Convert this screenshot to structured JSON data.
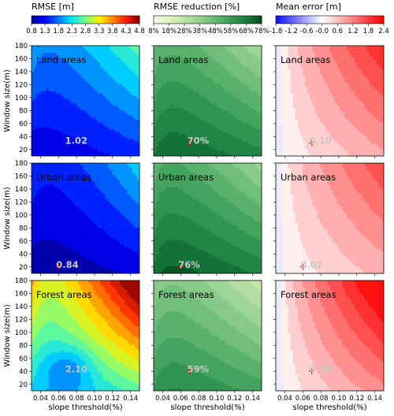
{
  "chart_data": {
    "type": "heatmap",
    "rows": [
      {
        "region": "Land areas"
      },
      {
        "region": "Urban areas"
      },
      {
        "region": "Forest areas"
      }
    ],
    "columns": [
      {
        "title": "RMSE [m]",
        "colormap": "jet",
        "colorbar_range": [
          0.8,
          4.8
        ],
        "colorbar_ticks": [
          "0.8",
          "1.3",
          "1.8",
          "2.3",
          "2.8",
          "3.3",
          "3.8",
          "4.3",
          "4.8"
        ],
        "annotations": [
          "1.02",
          "0.84",
          "2.10"
        ]
      },
      {
        "title": "RMSE reduction [%]",
        "colormap": "greens",
        "colorbar_range": [
          8,
          78
        ],
        "colorbar_ticks": [
          "8%",
          "18%",
          "28%",
          "38%",
          "48%",
          "58%",
          "68%",
          "78%"
        ],
        "annotations": [
          "70%",
          "76%",
          "59%"
        ]
      },
      {
        "title": "Mean error [m]",
        "colormap": "bwr",
        "colorbar_range": [
          -1.8,
          2.4
        ],
        "colorbar_ticks": [
          "-1.8",
          "-1.2",
          "-0.6",
          "-0.0",
          "0.6",
          "1.2",
          "1.8",
          "2.4"
        ],
        "annotations": [
          "0.10",
          "0.07",
          "0.30"
        ]
      }
    ],
    "optimum_markers": [
      {
        "row": 0,
        "x": 0.07,
        "y": 30
      },
      {
        "row": 1,
        "x": 0.06,
        "y": 20
      },
      {
        "row": 2,
        "x": 0.07,
        "y": 40
      }
    ],
    "xlim": [
      0.03,
      0.15
    ],
    "ylim": [
      10,
      180
    ],
    "xticks": [
      "0.04",
      "0.06",
      "0.08",
      "0.10",
      "0.12",
      "0.14"
    ],
    "yticks": [
      "20",
      "40",
      "60",
      "80",
      "100",
      "120",
      "140",
      "160",
      "180"
    ],
    "xlabel": "slope threshold(%)",
    "ylabel": "Window size(m)"
  }
}
